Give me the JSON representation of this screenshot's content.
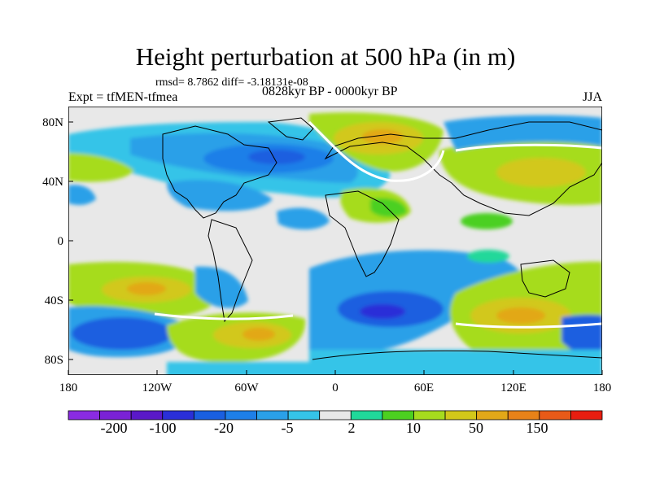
{
  "title": "Height perturbation at 500 hPa (in m)",
  "stats": "rmsd= 8.7862 diff= -3.18131e-08",
  "experiment": "Expt = tfMEN-tfmea",
  "period": "0828kyr BP - 0000kyr BP",
  "season": "JJA",
  "axes": {
    "y_ticks": [
      "80N",
      "40N",
      "0",
      "40S",
      "80S"
    ],
    "x_ticks": [
      "180",
      "120W",
      "60W",
      "0",
      "60E",
      "120E",
      "180"
    ]
  },
  "colorbar": {
    "colors": [
      "#8a2be2",
      "#7a22d6",
      "#5a18c8",
      "#2a2fd8",
      "#1a5fe0",
      "#1e7fe8",
      "#2aa0e8",
      "#35c4e8",
      "#e8e8e8",
      "#20d89a",
      "#4cd020",
      "#a6dc1e",
      "#d2c81a",
      "#e2a818",
      "#e88218",
      "#e85a18",
      "#e81e10"
    ],
    "labels": [
      "-200",
      "-100",
      "-20",
      "-5",
      "2",
      "10",
      "50",
      "150"
    ]
  }
}
